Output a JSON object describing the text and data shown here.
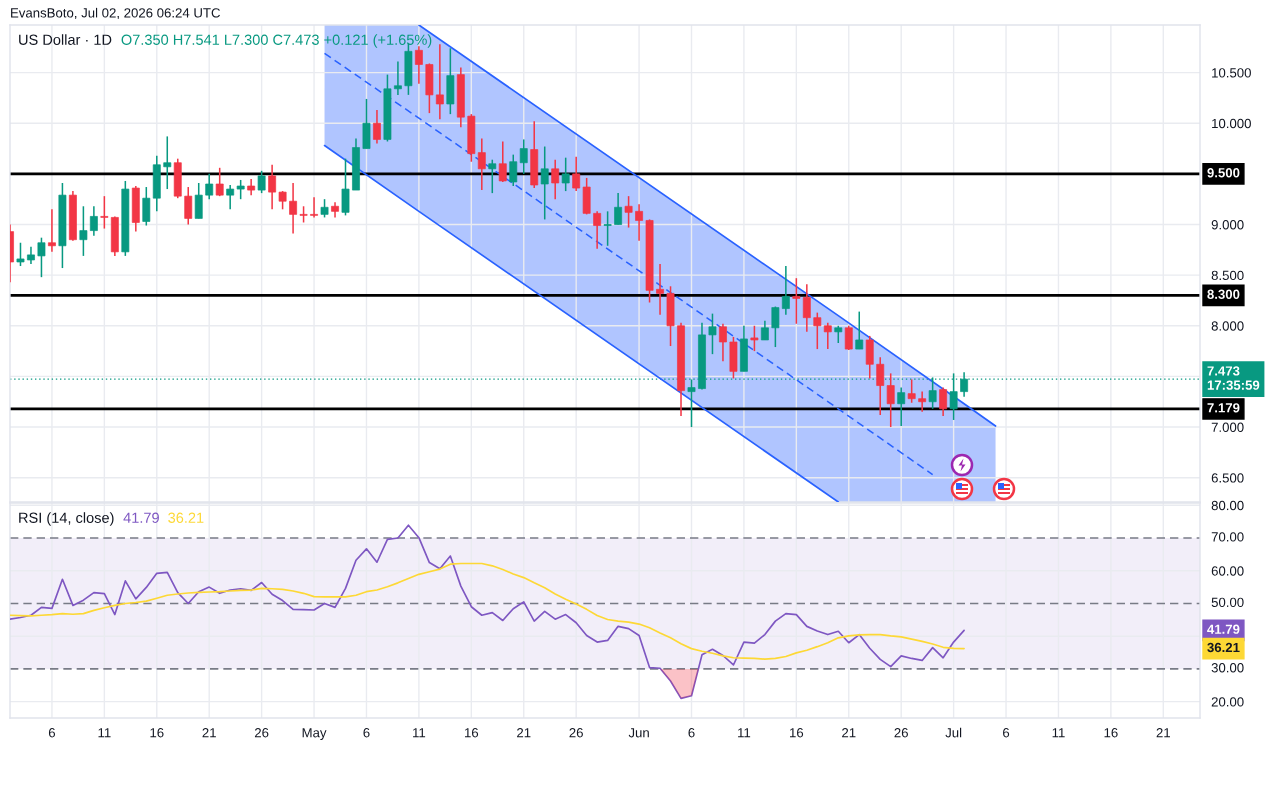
{
  "chart_data": [
    {
      "type": "candlestick",
      "title": "US Dollar · 1D",
      "subtitle": "O7.350 H7.541 L7.300 C7.473 +0.121 (+1.65%)",
      "annotations": [
        "EvansBoto, Jul 02, 2026 06:24 UTC"
      ],
      "x": [
        "2026-04-02",
        "2026-04-03",
        "2026-04-04",
        "2026-04-05",
        "2026-04-06",
        "2026-04-07",
        "2026-04-08",
        "2026-04-09",
        "2026-04-10",
        "2026-04-11",
        "2026-04-12",
        "2026-04-13",
        "2026-04-14",
        "2026-04-15",
        "2026-04-16",
        "2026-04-17",
        "2026-04-18",
        "2026-04-19",
        "2026-04-20",
        "2026-04-21",
        "2026-04-22",
        "2026-04-23",
        "2026-04-24",
        "2026-04-25",
        "2026-04-26",
        "2026-04-27",
        "2026-04-28",
        "2026-04-29",
        "2026-04-30",
        "2026-05-01",
        "2026-05-02",
        "2026-05-03",
        "2026-05-04",
        "2026-05-05",
        "2026-05-06",
        "2026-05-07",
        "2026-05-08",
        "2026-05-09",
        "2026-05-10",
        "2026-05-11",
        "2026-05-12",
        "2026-05-13",
        "2026-05-14",
        "2026-05-15",
        "2026-05-16",
        "2026-05-17",
        "2026-05-18",
        "2026-05-19",
        "2026-05-20",
        "2026-05-21",
        "2026-05-22",
        "2026-05-23",
        "2026-05-24",
        "2026-05-25",
        "2026-05-26",
        "2026-05-27",
        "2026-05-28",
        "2026-05-29",
        "2026-05-30",
        "2026-05-31",
        "2026-06-01",
        "2026-06-02",
        "2026-06-03",
        "2026-06-04",
        "2026-06-05",
        "2026-06-06",
        "2026-06-07",
        "2026-06-08",
        "2026-06-09",
        "2026-06-10",
        "2026-06-11",
        "2026-06-12",
        "2026-06-13",
        "2026-06-14",
        "2026-06-15",
        "2026-06-16",
        "2026-06-17",
        "2026-06-18",
        "2026-06-19",
        "2026-06-20",
        "2026-06-21",
        "2026-06-22",
        "2026-06-23",
        "2026-06-24",
        "2026-06-25",
        "2026-06-26",
        "2026-06-27",
        "2026-06-28",
        "2026-06-29",
        "2026-06-30",
        "2026-07-01",
        "2026-07-02"
      ],
      "ohlc": [
        [
          8.93,
          9.0,
          8.43,
          8.63
        ],
        [
          8.63,
          8.82,
          8.59,
          8.66
        ],
        [
          8.65,
          8.78,
          8.61,
          8.7
        ],
        [
          8.69,
          8.87,
          8.48,
          8.82
        ],
        [
          8.82,
          9.15,
          8.73,
          8.79
        ],
        [
          8.79,
          9.41,
          8.57,
          9.29
        ],
        [
          9.29,
          9.33,
          8.84,
          8.85
        ],
        [
          8.85,
          9.18,
          8.69,
          8.94
        ],
        [
          8.94,
          9.18,
          8.89,
          9.08
        ],
        [
          9.08,
          9.28,
          8.96,
          9.07
        ],
        [
          9.07,
          9.08,
          8.69,
          8.73
        ],
        [
          8.73,
          9.43,
          8.69,
          9.35
        ],
        [
          9.36,
          9.38,
          8.93,
          9.02
        ],
        [
          9.03,
          9.37,
          8.99,
          9.26
        ],
        [
          9.26,
          9.68,
          9.13,
          9.59
        ],
        [
          9.57,
          9.87,
          9.35,
          9.61
        ],
        [
          9.61,
          9.65,
          9.26,
          9.28
        ],
        [
          9.28,
          9.37,
          9.0,
          9.06
        ],
        [
          9.06,
          9.41,
          9.06,
          9.29
        ],
        [
          9.29,
          9.5,
          9.25,
          9.4
        ],
        [
          9.4,
          9.56,
          9.28,
          9.29
        ],
        [
          9.29,
          9.39,
          9.15,
          9.35
        ],
        [
          9.35,
          9.44,
          9.25,
          9.38
        ],
        [
          9.38,
          9.45,
          9.29,
          9.34
        ],
        [
          9.34,
          9.53,
          9.31,
          9.48
        ],
        [
          9.48,
          9.59,
          9.15,
          9.32
        ],
        [
          9.32,
          9.33,
          9.15,
          9.23
        ],
        [
          9.23,
          9.41,
          8.91,
          9.1
        ],
        [
          9.1,
          9.18,
          9.02,
          9.09
        ],
        [
          9.1,
          9.27,
          9.07,
          9.09
        ],
        [
          9.1,
          9.25,
          9.07,
          9.17
        ],
        [
          9.18,
          9.22,
          9.07,
          9.13
        ],
        [
          9.12,
          9.65,
          9.09,
          9.35
        ],
        [
          9.34,
          9.85,
          9.34,
          9.76
        ],
        [
          9.75,
          10.24,
          9.75,
          10.0
        ],
        [
          10.0,
          10.13,
          9.8,
          9.84
        ],
        [
          9.84,
          10.48,
          9.82,
          10.34
        ],
        [
          10.34,
          10.61,
          10.28,
          10.37
        ],
        [
          10.37,
          10.79,
          10.28,
          10.71
        ],
        [
          10.72,
          10.76,
          10.39,
          10.58
        ],
        [
          10.58,
          10.59,
          10.1,
          10.28
        ],
        [
          10.28,
          10.78,
          10.04,
          10.19
        ],
        [
          10.19,
          10.74,
          10.09,
          10.47
        ],
        [
          10.48,
          10.55,
          9.96,
          10.06
        ],
        [
          10.07,
          10.09,
          9.62,
          9.7
        ],
        [
          9.71,
          9.85,
          9.34,
          9.55
        ],
        [
          9.55,
          9.64,
          9.31,
          9.6
        ],
        [
          9.6,
          9.82,
          9.42,
          9.43
        ],
        [
          9.42,
          9.69,
          9.38,
          9.62
        ],
        [
          9.61,
          9.84,
          9.5,
          9.75
        ],
        [
          9.74,
          10.02,
          9.36,
          9.39
        ],
        [
          9.4,
          9.77,
          9.05,
          9.55
        ],
        [
          9.55,
          9.64,
          9.25,
          9.41
        ],
        [
          9.41,
          9.66,
          9.33,
          9.5
        ],
        [
          9.5,
          9.67,
          9.33,
          9.36
        ],
        [
          9.37,
          9.46,
          9.1,
          9.11
        ],
        [
          9.11,
          9.13,
          8.76,
          8.99
        ],
        [
          8.99,
          9.13,
          8.79,
          9.0
        ],
        [
          9.0,
          9.31,
          9.0,
          9.17
        ],
        [
          9.18,
          9.28,
          8.97,
          9.12
        ],
        [
          9.13,
          9.2,
          8.84,
          9.04
        ],
        [
          9.04,
          9.05,
          8.23,
          8.35
        ],
        [
          8.36,
          8.61,
          8.11,
          8.32
        ],
        [
          8.32,
          8.39,
          7.8,
          8.0
        ],
        [
          8.0,
          8.03,
          7.11,
          7.36
        ],
        [
          7.35,
          7.47,
          7.0,
          7.39
        ],
        [
          7.38,
          8.03,
          7.37,
          7.91
        ],
        [
          7.91,
          8.12,
          7.72,
          7.99
        ],
        [
          7.99,
          8.02,
          7.65,
          7.84
        ],
        [
          7.84,
          7.89,
          7.48,
          7.55
        ],
        [
          7.55,
          8.0,
          7.55,
          7.87
        ],
        [
          7.88,
          8.0,
          7.75,
          7.86
        ],
        [
          7.86,
          8.05,
          7.86,
          7.98
        ],
        [
          7.98,
          8.19,
          7.79,
          8.18
        ],
        [
          8.17,
          8.59,
          8.11,
          8.29
        ],
        [
          8.29,
          8.47,
          8.02,
          8.27
        ],
        [
          8.28,
          8.41,
          7.94,
          8.08
        ],
        [
          8.08,
          8.13,
          7.77,
          8.0
        ],
        [
          8.0,
          8.03,
          7.77,
          7.94
        ],
        [
          7.94,
          8.0,
          7.83,
          7.98
        ],
        [
          7.98,
          8.0,
          7.76,
          7.77
        ],
        [
          7.77,
          8.14,
          7.77,
          7.86
        ],
        [
          7.86,
          7.9,
          7.48,
          7.62
        ],
        [
          7.62,
          7.69,
          7.12,
          7.41
        ],
        [
          7.41,
          7.53,
          7.0,
          7.23
        ],
        [
          7.23,
          7.39,
          7.01,
          7.34
        ],
        [
          7.33,
          7.47,
          7.24,
          7.28
        ],
        [
          7.28,
          7.35,
          7.15,
          7.25
        ],
        [
          7.25,
          7.49,
          7.18,
          7.36
        ],
        [
          7.37,
          7.39,
          7.11,
          7.18
        ],
        [
          7.18,
          7.53,
          7.07,
          7.35
        ],
        [
          7.35,
          7.541,
          7.3,
          7.473
        ]
      ],
      "colors": [
        "#f23645",
        "#089981",
        "#089981",
        "#089981",
        "#f23645",
        "#089981",
        "#f23645",
        "#089981",
        "#089981",
        "#f23645",
        "#f23645",
        "#089981",
        "#f23645",
        "#089981",
        "#089981",
        "#089981",
        "#f23645",
        "#f23645",
        "#089981",
        "#089981",
        "#f23645",
        "#089981",
        "#089981",
        "#f23645",
        "#089981",
        "#f23645",
        "#f23645",
        "#f23645",
        "#f23645",
        "#f23645",
        "#089981",
        "#f23645",
        "#089981",
        "#089981",
        "#089981",
        "#f23645",
        "#089981",
        "#089981",
        "#089981",
        "#f23645",
        "#f23645",
        "#f23645",
        "#089981",
        "#f23645",
        "#f23645",
        "#f23645",
        "#089981",
        "#f23645",
        "#089981",
        "#089981",
        "#f23645",
        "#089981",
        "#f23645",
        "#089981",
        "#f23645",
        "#f23645",
        "#f23645",
        "#089981",
        "#089981",
        "#f23645",
        "#f23645",
        "#f23645",
        "#f23645",
        "#f23645",
        "#f23645",
        "#089981",
        "#089981",
        "#089981",
        "#f23645",
        "#f23645",
        "#089981",
        "#f23645",
        "#089981",
        "#089981",
        "#089981",
        "#f23645",
        "#f23645",
        "#f23645",
        "#f23645",
        "#089981",
        "#f23645",
        "#089981",
        "#f23645",
        "#f23645",
        "#f23645",
        "#089981",
        "#f23645",
        "#f23645",
        "#089981",
        "#f23645",
        "#089981",
        "#089981"
      ],
      "series": [
        {
          "type": "line",
          "color": "#2962ff",
          "line_style": "dashed",
          "x": [
            "2026-05-02",
            "2026-05-11",
            "2026-06-20",
            "2026-06-29",
            "2026-07-05"
          ],
          "values": [
            10.69,
            10.05,
            7.18,
            6.53,
            null
          ],
          "lower": [
            9.78,
            9.13,
            6.26,
            6.26,
            6.26
          ],
          "upper": [
            10.97,
            10.97,
            8.1,
            7.45,
            7.01
          ]
        },
        {
          "type": "line",
          "color": "#2962ff",
          "line_style": "solid",
          "x": [
            "2026-05-11",
            "2026-06-20",
            "2026-07-02",
            "2026-07-05"
          ],
          "values": [
            10.97,
            8.1,
            7.23,
            7.01
          ]
        },
        {
          "type": "line",
          "color": "#2962ff",
          "line_style": "solid",
          "x": [
            "2026-05-02",
            "2026-05-11",
            "2026-06-20"
          ],
          "values": [
            9.78,
            9.13,
            6.26
          ]
        }
      ],
      "ref_lines": [
        {
          "axis": "y",
          "value": 9.5,
          "label": "9.500",
          "color": "#000000",
          "line_style": "solid"
        },
        {
          "axis": "y",
          "value": 8.3,
          "label": "8.300",
          "color": "#000000",
          "line_style": "solid"
        },
        {
          "axis": "y",
          "value": 7.179,
          "label": "7.179",
          "color": "#000000",
          "line_style": "solid"
        },
        {
          "axis": "y",
          "value": 7.473,
          "label": "7.473\n17:35:59",
          "color": "#089981",
          "line_style": "dotted"
        }
      ],
      "xlim": [
        "2026-04-02",
        "2026-07-24T12:00"
      ],
      "xticks": [
        {
          "value": "2026-04-06",
          "label": null
        },
        {
          "value": "2026-04-11",
          "label": null
        },
        {
          "value": "2026-04-16",
          "label": null
        },
        {
          "value": "2026-04-21",
          "label": null
        },
        {
          "value": "2026-04-26",
          "label": null
        },
        {
          "value": "2026-05-01",
          "label": null
        },
        {
          "value": "2026-05-06",
          "label": null
        },
        {
          "value": "2026-05-11",
          "label": null
        },
        {
          "value": "2026-05-16",
          "label": null
        },
        {
          "value": "2026-05-21",
          "label": null
        },
        {
          "value": "2026-05-26",
          "label": null
        },
        {
          "value": "2026-06-01",
          "label": null
        },
        {
          "value": "2026-06-06",
          "label": null
        },
        {
          "value": "2026-06-11",
          "label": null
        },
        {
          "value": "2026-06-16",
          "label": null
        },
        {
          "value": "2026-06-21",
          "label": null
        },
        {
          "value": "2026-06-26",
          "label": null
        },
        {
          "value": "2026-07-01",
          "label": null
        },
        {
          "value": "2026-07-06",
          "label": null
        },
        {
          "value": "2026-07-11",
          "label": null
        },
        {
          "value": "2026-07-16",
          "label": null
        },
        {
          "value": "2026-07-21",
          "label": null
        }
      ],
      "ylim": [
        6.26,
        10.97
      ],
      "yticks": [
        {
          "value": 6.5,
          "label": "6.500"
        },
        {
          "value": 7,
          "label": "7.000"
        },
        {
          "value": 7.5,
          "label": null
        },
        {
          "value": 8,
          "label": "8.000"
        },
        {
          "value": 8.5,
          "label": "8.500"
        },
        {
          "value": 9,
          "label": "9.000"
        },
        {
          "value": 9.5,
          "label": null
        },
        {
          "value": 10,
          "label": "10.000"
        },
        {
          "value": 10.5,
          "label": "10.500"
        }
      ],
      "grid": true,
      "tick_labels": "y"
    },
    {
      "type": "line",
      "title": "RSI (14, close)",
      "annotations": [
        "41.79",
        "36.21"
      ],
      "x": [
        "2026-04-02",
        "2026-04-03",
        "2026-04-04",
        "2026-04-05",
        "2026-04-06",
        "2026-04-07",
        "2026-04-08",
        "2026-04-09",
        "2026-04-10",
        "2026-04-11",
        "2026-04-12",
        "2026-04-13",
        "2026-04-14",
        "2026-04-15",
        "2026-04-16",
        "2026-04-17",
        "2026-04-18",
        "2026-04-19",
        "2026-04-20",
        "2026-04-21",
        "2026-04-22",
        "2026-04-23",
        "2026-04-24",
        "2026-04-25",
        "2026-04-26",
        "2026-04-27",
        "2026-04-28",
        "2026-04-29",
        "2026-04-30",
        "2026-05-01",
        "2026-05-02",
        "2026-05-03",
        "2026-05-04",
        "2026-05-05",
        "2026-05-06",
        "2026-05-07",
        "2026-05-08",
        "2026-05-09",
        "2026-05-10",
        "2026-05-11",
        "2026-05-12",
        "2026-05-13",
        "2026-05-14",
        "2026-05-15",
        "2026-05-16",
        "2026-05-17",
        "2026-05-18",
        "2026-05-19",
        "2026-05-20",
        "2026-05-21",
        "2026-05-22",
        "2026-05-23",
        "2026-05-24",
        "2026-05-25",
        "2026-05-26",
        "2026-05-27",
        "2026-05-28",
        "2026-05-29",
        "2026-05-30",
        "2026-05-31",
        "2026-06-01",
        "2026-06-02",
        "2026-06-03",
        "2026-06-04",
        "2026-06-05",
        "2026-06-06",
        "2026-06-07",
        "2026-06-08",
        "2026-06-09",
        "2026-06-10",
        "2026-06-11",
        "2026-06-12",
        "2026-06-13",
        "2026-06-14",
        "2026-06-15",
        "2026-06-16",
        "2026-06-17",
        "2026-06-18",
        "2026-06-19",
        "2026-06-20",
        "2026-06-21",
        "2026-06-22",
        "2026-06-23",
        "2026-06-24",
        "2026-06-25",
        "2026-06-26",
        "2026-06-27",
        "2026-06-28",
        "2026-06-29",
        "2026-06-30",
        "2026-07-01",
        "2026-07-02"
      ],
      "series": [
        {
          "color": "#7e57c2",
          "values": [
            45.2,
            45.7,
            46.4,
            48.8,
            48.5,
            57.4,
            49.4,
            51.0,
            53.3,
            53.0,
            46.6,
            56.9,
            51.4,
            54.9,
            59.2,
            59.5,
            53.3,
            50.0,
            53.6,
            55.0,
            53.1,
            54.1,
            54.5,
            54.0,
            56.4,
            52.8,
            50.9,
            48.2,
            48.1,
            48.0,
            50.0,
            48.8,
            54.6,
            63.2,
            66.7,
            62.6,
            69.6,
            70.0,
            73.9,
            70.1,
            62.5,
            60.6,
            64.5,
            55.3,
            49.0,
            46.4,
            47.2,
            44.8,
            48.4,
            50.5,
            44.6,
            47.6,
            45.2,
            46.6,
            44.1,
            40.2,
            38.2,
            38.7,
            43.0,
            42.3,
            40.2,
            30.4,
            30.2,
            26.3,
            21.0,
            21.8,
            34.3,
            36.0,
            34.1,
            31.2,
            38.2,
            37.9,
            40.5,
            44.6,
            46.9,
            46.6,
            43.0,
            41.6,
            40.5,
            41.5,
            38.0,
            40.5,
            36.3,
            32.9,
            30.7,
            34.0,
            33.2,
            32.6,
            36.5,
            33.4,
            38.2,
            41.79
          ]
        },
        {
          "color": "#fdd835",
          "values": [
            46.4,
            46.3,
            46.2,
            46.4,
            46.6,
            46.9,
            46.7,
            46.9,
            47.9,
            48.7,
            49.4,
            50.0,
            50.3,
            50.7,
            51.6,
            52.5,
            52.9,
            53.2,
            53.4,
            53.5,
            53.6,
            53.8,
            54.0,
            54.1,
            54.6,
            54.5,
            54.3,
            53.8,
            53.1,
            52.1,
            52.0,
            52.0,
            52.0,
            52.5,
            53.6,
            54.1,
            55.1,
            56.3,
            57.6,
            58.9,
            59.7,
            60.5,
            62.0,
            62.2,
            62.2,
            62.2,
            61.5,
            60.4,
            59.0,
            57.9,
            56.3,
            54.8,
            52.9,
            51.3,
            49.8,
            48.2,
            46.3,
            45.1,
            44.6,
            44.3,
            43.7,
            42.6,
            41.0,
            39.5,
            37.7,
            36.2,
            35.4,
            34.8,
            34.0,
            33.4,
            33.3,
            33.2,
            33.0,
            33.2,
            33.8,
            34.9,
            35.7,
            36.8,
            38.0,
            39.5,
            40.1,
            40.4,
            40.5,
            40.5,
            40.1,
            39.8,
            39.1,
            38.4,
            37.6,
            36.6,
            36.3,
            36.21
          ]
        },
        {
          "type": "area",
          "color": "#f23645",
          "x": [
            "2026-06-03T01:00",
            "2026-06-04",
            "2026-06-05",
            "2026-06-06",
            "2026-06-06T16:00"
          ],
          "values": [
            30,
            26.3,
            21.0,
            21.8,
            30
          ]
        }
      ],
      "bands": [
        {
          "axis": "y",
          "from": 30,
          "to": 70,
          "color": "#7e57c2"
        }
      ],
      "ref_lines": [
        {
          "axis": "y",
          "value": 70,
          "label": "70.00",
          "color": "#787b86",
          "line_style": "dashed"
        },
        {
          "axis": "y",
          "value": 50,
          "label": "50.00",
          "color": "#787b86",
          "line_style": "dashed"
        },
        {
          "axis": "y",
          "value": 30,
          "label": "30.00",
          "color": "#787b86",
          "line_style": "dashed"
        }
      ],
      "xlim": [
        "2026-04-02",
        "2026-07-24T12:00"
      ],
      "xticks": [
        {
          "value": "2026-04-06",
          "label": "6"
        },
        {
          "value": "2026-04-11",
          "label": "11"
        },
        {
          "value": "2026-04-16",
          "label": "16"
        },
        {
          "value": "2026-04-21",
          "label": "21"
        },
        {
          "value": "2026-04-26",
          "label": "26"
        },
        {
          "value": "2026-05-01",
          "label": "May"
        },
        {
          "value": "2026-05-06",
          "label": "6"
        },
        {
          "value": "2026-05-11",
          "label": "11"
        },
        {
          "value": "2026-05-16",
          "label": "16"
        },
        {
          "value": "2026-05-21",
          "label": "21"
        },
        {
          "value": "2026-05-26",
          "label": "26"
        },
        {
          "value": "2026-06-01",
          "label": "Jun"
        },
        {
          "value": "2026-06-06",
          "label": "6"
        },
        {
          "value": "2026-06-11",
          "label": "11"
        },
        {
          "value": "2026-06-16",
          "label": "16"
        },
        {
          "value": "2026-06-21",
          "label": "21"
        },
        {
          "value": "2026-06-26",
          "label": "26"
        },
        {
          "value": "2026-07-01",
          "label": "Jul"
        },
        {
          "value": "2026-07-06",
          "label": "6"
        },
        {
          "value": "2026-07-11",
          "label": "11"
        },
        {
          "value": "2026-07-16",
          "label": "16"
        },
        {
          "value": "2026-07-21",
          "label": "21"
        }
      ],
      "ylim": [
        15,
        80.7
      ],
      "yticks": [
        {
          "value": 20,
          "label": "20.00"
        },
        {
          "value": 40,
          "label": null
        },
        {
          "value": 60,
          "label": "60.00"
        },
        {
          "value": 80,
          "label": "80.00"
        }
      ],
      "grid": true
    }
  ]
}
